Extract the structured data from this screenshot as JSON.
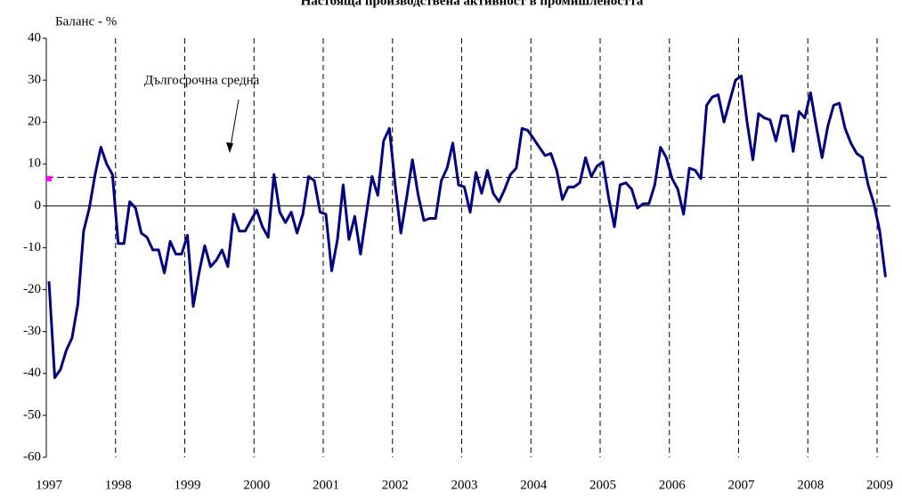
{
  "chart_data": {
    "type": "line",
    "title": "Настояща производствена активност в промишлеността",
    "y_axis_label": "Баланс - %",
    "categories": [
      "1997",
      null,
      null,
      null,
      null,
      null,
      null,
      null,
      null,
      null,
      null,
      null,
      "1998",
      null,
      null,
      null,
      null,
      null,
      null,
      null,
      null,
      null,
      null,
      null,
      "1999",
      null,
      null,
      null,
      null,
      null,
      null,
      null,
      null,
      null,
      null,
      null,
      "2000",
      null,
      null,
      null,
      null,
      null,
      null,
      null,
      null,
      null,
      null,
      null,
      "2001",
      null,
      null,
      null,
      null,
      null,
      null,
      null,
      null,
      null,
      null,
      null,
      "2002",
      null,
      null,
      null,
      null,
      null,
      null,
      null,
      null,
      null,
      null,
      null,
      "2003",
      null,
      null,
      null,
      null,
      null,
      null,
      null,
      null,
      null,
      null,
      null,
      "2004",
      null,
      null,
      null,
      null,
      null,
      null,
      null,
      null,
      null,
      null,
      null,
      "2005",
      null,
      null,
      null,
      null,
      null,
      null,
      null,
      null,
      null,
      null,
      null,
      "2006",
      null,
      null,
      null,
      null,
      null,
      null,
      null,
      null,
      null,
      null,
      null,
      "2007",
      null,
      null,
      null,
      null,
      null,
      null,
      null,
      null,
      null,
      null,
      null,
      "2008",
      null,
      null,
      null,
      null,
      null,
      null,
      null,
      null,
      null,
      null,
      null,
      "2009",
      null
    ],
    "series": [
      {
        "color": "#000080",
        "values": [
          -18,
          -41,
          -39,
          -34.5,
          -31.5,
          -23.5,
          -6,
          -0.5,
          7.5,
          14,
          10,
          7.5,
          -9,
          -9,
          1,
          -0.5,
          -6.5,
          -7.5,
          -10.5,
          -10.5,
          -16,
          -8.5,
          -11.5,
          -11.5,
          -7,
          -24,
          -16,
          -9.5,
          -14.5,
          -13,
          -10.5,
          -14.5,
          -2,
          -6,
          -6,
          -3.5,
          -1,
          -5,
          -7.5,
          7.5,
          -1.5,
          -4,
          -1.5,
          -6.5,
          -2,
          7,
          6,
          -1.5,
          -2,
          -15.5,
          -8,
          5,
          -8,
          -2.5,
          -11.5,
          -2,
          7,
          2.5,
          15.5,
          18.5,
          5,
          -6.5,
          2,
          11,
          2.5,
          -3.5,
          -3,
          -3,
          6,
          9,
          15,
          5,
          4.5,
          -1.5,
          8,
          3,
          8.5,
          3,
          1,
          4,
          7.5,
          9,
          18.5,
          18,
          16,
          14,
          12,
          12.5,
          8.5,
          1.5,
          4.5,
          4.5,
          5.5,
          11.5,
          7,
          9.5,
          10.5,
          2,
          -5,
          5,
          5.5,
          4,
          -0.5,
          0.5,
          0.5,
          5,
          14,
          11.5,
          6.5,
          4,
          -2,
          9,
          8.5,
          6.5,
          24,
          26,
          26.5,
          20,
          25,
          30,
          31,
          20,
          11,
          22,
          21,
          20.5,
          15.5,
          21.5,
          21.5,
          13,
          22.5,
          21,
          27,
          19,
          11.5,
          19,
          24,
          24.5,
          18.5,
          15,
          12.5,
          11.5,
          5,
          0.5,
          -6,
          -17
        ]
      }
    ],
    "average": {
      "label": "Дългосрочна средна",
      "value": 6.8
    },
    "marker": {
      "value": 6.5,
      "color": "#ff00ff"
    },
    "ylim": [
      -60,
      40
    ],
    "yticks": [
      -60,
      -50,
      -40,
      -30,
      -20,
      -10,
      0,
      10,
      20,
      30,
      40
    ]
  }
}
